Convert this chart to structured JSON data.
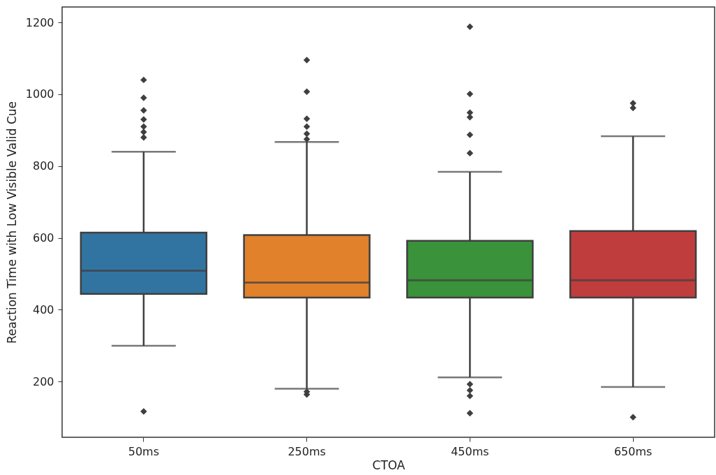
{
  "chart_data": {
    "type": "box",
    "xlabel": "CTOA",
    "ylabel": "Reaction Time with Low Visible Valid Cue",
    "categories": [
      "50ms",
      "250ms",
      "450ms",
      "650ms"
    ],
    "colors": [
      "#3274a1",
      "#e1812c",
      "#3a923a",
      "#c03d3e"
    ],
    "boxes": [
      {
        "low": 300,
        "q1": 444,
        "median": 509,
        "q3": 615,
        "high": 840,
        "outliers": [
          117,
          880,
          895,
          910,
          930,
          955,
          990,
          1040
        ]
      },
      {
        "low": 180,
        "q1": 434,
        "median": 476,
        "q3": 608,
        "high": 867,
        "outliers": [
          164,
          172,
          875,
          890,
          910,
          932,
          1007,
          1095
        ]
      },
      {
        "low": 212,
        "q1": 434,
        "median": 482,
        "q3": 592,
        "high": 784,
        "outliers": [
          112,
          160,
          176,
          193,
          836,
          887,
          936,
          949,
          1001,
          1188
        ]
      },
      {
        "low": 185,
        "q1": 434,
        "median": 482,
        "q3": 619,
        "high": 883,
        "outliers": [
          101,
          962,
          975
        ]
      }
    ],
    "ylim": [
      45,
      1243
    ],
    "yticks": [
      200,
      400,
      600,
      800,
      1000,
      1200
    ]
  }
}
